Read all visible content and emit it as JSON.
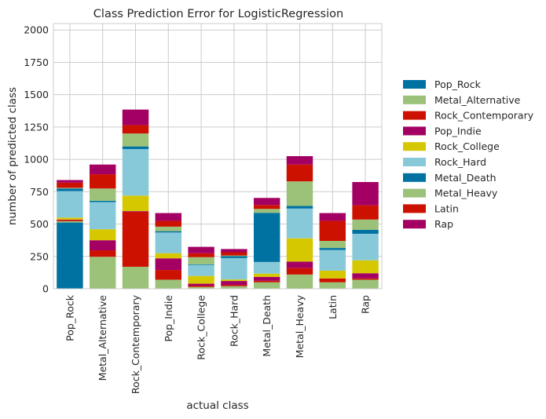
{
  "chart_data": {
    "type": "bar",
    "stacked": true,
    "title": "Class Prediction Error for LogisticRegression",
    "xlabel": "actual class",
    "ylabel": "number of predicted class",
    "ylim": [
      0,
      2050
    ],
    "yticks": [
      0,
      250,
      500,
      750,
      1000,
      1250,
      1500,
      1750,
      2000
    ],
    "grid": true,
    "legend_position": "right",
    "categories": [
      "Pop_Rock",
      "Metal_Alternative",
      "Rock_Contemporary",
      "Pop_Indie",
      "Rock_College",
      "Rock_Hard",
      "Metal_Death",
      "Metal_Heavy",
      "Latin",
      "Rap"
    ],
    "series": [
      {
        "name": "Pop_Rock",
        "color": "#0072a2",
        "values": [
          512,
          0,
          0,
          0,
          0,
          0,
          0,
          0,
          0,
          0
        ]
      },
      {
        "name": "Metal_Alternative",
        "color": "#9cc27a",
        "values": [
          10,
          247,
          170,
          70,
          14,
          20,
          50,
          110,
          50,
          70
        ]
      },
      {
        "name": "Rock_Contemporary",
        "color": "#cc1100",
        "values": [
          10,
          50,
          425,
          75,
          10,
          10,
          12,
          50,
          30,
          10
        ]
      },
      {
        "name": "Pop_Indie",
        "color": "#a40064",
        "values": [
          3,
          78,
          5,
          90,
          15,
          30,
          30,
          50,
          0,
          40
        ]
      },
      {
        "name": "Rock_College",
        "color": "#d6c800",
        "values": [
          15,
          85,
          120,
          40,
          60,
          12,
          25,
          180,
          60,
          100
        ]
      },
      {
        "name": "Rock_Hard",
        "color": "#88c9d9",
        "values": [
          205,
          210,
          360,
          160,
          85,
          165,
          90,
          230,
          160,
          205
        ]
      },
      {
        "name": "Metal_Death",
        "color": "#0072a2",
        "values": [
          20,
          10,
          20,
          10,
          5,
          15,
          380,
          20,
          15,
          30
        ]
      },
      {
        "name": "Metal_Heavy",
        "color": "#9cc27a",
        "values": [
          5,
          95,
          100,
          35,
          55,
          5,
          30,
          190,
          55,
          80
        ]
      },
      {
        "name": "Latin",
        "color": "#cc1100",
        "values": [
          40,
          110,
          65,
          45,
          30,
          25,
          30,
          130,
          155,
          110
        ]
      },
      {
        "name": "Rap",
        "color": "#a40064",
        "values": [
          20,
          75,
          120,
          60,
          50,
          25,
          55,
          65,
          60,
          180
        ]
      }
    ]
  }
}
